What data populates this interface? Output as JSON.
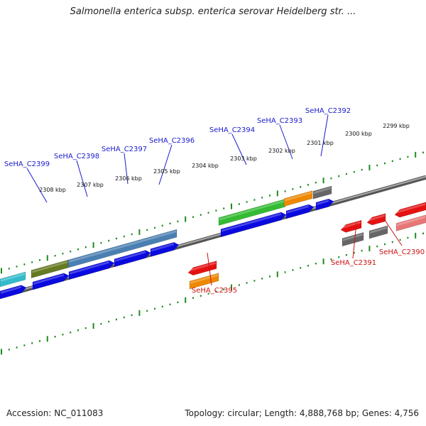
{
  "title": "Salmonella enterica subsp. enterica serovar Heidelberg str. ...",
  "footer": {
    "accession": "Accession: NC_011083",
    "topology": "Topology: circular; Length: 4,888,768 bp; Genes: 4,756"
  },
  "colors": {
    "backbone": "#777777",
    "ruler_ticks": "#1e8a1e",
    "forward_label": "#1a1acc",
    "reverse_label": "#cc1111"
  },
  "ruler_labels": [
    "2308 kbp",
    "2307 kbp",
    "2306 kbp",
    "2305 kbp",
    "2304 kbp",
    "2303 kbp",
    "2302 kbp",
    "2301 kbp",
    "2300 kbp",
    "2299 kbp"
  ],
  "gene_labels": {
    "forward": [
      "SeHA_C2399",
      "SeHA_C2398",
      "SeHA_C2397",
      "SeHA_C2396",
      "SeHA_C2394",
      "SeHA_C2393",
      "SeHA_C2392"
    ],
    "reverse": [
      "SeHA_C2395",
      "SeHA_C2391",
      "SeHA_C2390"
    ]
  },
  "feature_colors": {
    "cds": "#0a0ae0",
    "gene_teal": "#33bbcc",
    "gene_olive": "#667a22",
    "gene_steel": "#4a7fb2",
    "gene_green": "#33bb33",
    "gene_orange": "#ee8800",
    "gene_gray": "#666666",
    "cds_reverse": "#e51111",
    "cds_pink": "#e77777"
  }
}
